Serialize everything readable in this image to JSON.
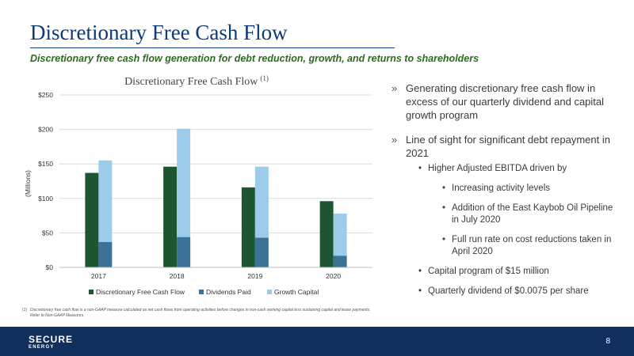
{
  "slide": {
    "title": "Discretionary Free Cash Flow",
    "subtitle": "Discretionary free cash flow generation for debt reduction, growth, and returns to shareholders"
  },
  "chart_data": {
    "type": "bar",
    "title": "Discretionary Free Cash Flow",
    "title_superscript": "(1)",
    "ylabel": "(Millions)",
    "xlabel": "",
    "categories": [
      "2017",
      "2018",
      "2019",
      "2020"
    ],
    "yticks": [
      "$0",
      "$50",
      "$100",
      "$150",
      "$200",
      "$250"
    ],
    "ylim": [
      0,
      250
    ],
    "grid": true,
    "legend_position": "bottom",
    "series": [
      {
        "name": "Discretionary Free Cash Flow",
        "values": [
          137,
          146,
          116,
          96
        ],
        "color": "#1e5631"
      },
      {
        "name": "Dividends Paid",
        "values": [
          37,
          44,
          43,
          17
        ],
        "color": "#3b7296",
        "stack": "b"
      },
      {
        "name": "Growth Capital",
        "values": [
          118,
          157,
          103,
          61
        ],
        "color": "#9dcbea",
        "stack": "b"
      }
    ]
  },
  "bullets": {
    "marker": "»",
    "sub_marker": "•",
    "b1": "Generating discretionary free cash flow in excess of our quarterly dividend and capital growth program",
    "b2": "Line of sight for significant debt repayment in 2021",
    "b2_1": "Higher Adjusted EBITDA driven by",
    "b2_1_1": "Increasing activity levels",
    "b2_1_2": "Addition of the East Kaybob Oil Pipeline in July 2020",
    "b2_1_3": "Full run rate on cost reductions taken in April 2020",
    "b2_2": "Capital program of $15 million",
    "b2_3": "Quarterly dividend of $0.0075 per share"
  },
  "footnote": {
    "num": "(1)",
    "text": "Discretionary free cash flow is a non-GAAP measure calculated as net cash flows from operating activities before changes in non-cash working capital less sustaining capital and lease payments. Refer to Non-GAAP Measures."
  },
  "footer": {
    "logo_line1": "SECURE",
    "logo_line2": "ENERGY",
    "page_number": "8"
  }
}
